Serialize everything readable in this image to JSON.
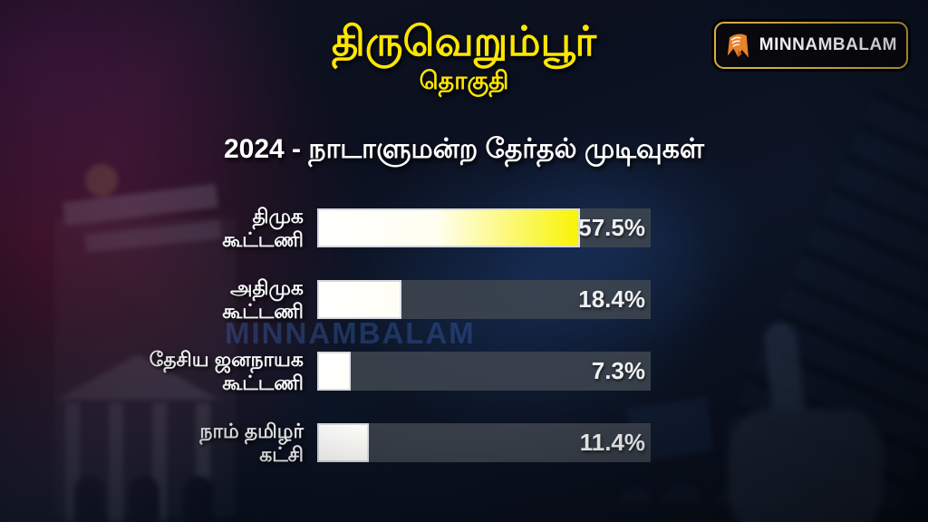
{
  "header": {
    "title": "திருவெறும்பூர்",
    "subtitle": "தொகுதி"
  },
  "brand": {
    "logo_text": "MINNAMBALAM",
    "logo_icon": "minnambalam-m-flame-icon",
    "logo_icon_color": "#e8832a",
    "logo_border_color": "#d4b03c",
    "watermark_text": "MINNAMBALAM"
  },
  "chart_data": {
    "type": "bar",
    "orientation": "horizontal",
    "title": "2024 - நாடாளுமன்ற தேர்தல் முடிவுகள்",
    "categories": [
      "திமுக கூட்டணி",
      "அதிமுக கூட்டணி",
      "தேசிய ஜனநாயக கூட்டணி",
      "நாம் தமிழர் கட்சி"
    ],
    "categories_lines": [
      [
        "திமுக",
        "கூட்டணி"
      ],
      [
        "அதிமுக",
        "கூட்டணி"
      ],
      [
        "தேசிய ஜனநாயக",
        "கூட்டணி"
      ],
      [
        "நாம் தமிழர்",
        "கட்சி"
      ]
    ],
    "values": [
      57.5,
      18.4,
      7.3,
      11.4
    ],
    "value_labels": [
      "57.5%",
      "18.4%",
      "7.3%",
      "11.4%"
    ],
    "unit": "%",
    "xlim": [
      0,
      73
    ],
    "grid": false,
    "legend": false,
    "colors": {
      "title_text": "#ffffff",
      "category_text": "#f5f6f8",
      "value_text": "#eef0f2",
      "bar_track": "#40464f",
      "bar_fill_start": "#ffffff",
      "bar_fill_mid": "#fffef0",
      "bar_fill_end": "#f8f300",
      "bar_border": "#dee2e6"
    }
  },
  "theme": {
    "background": "#0b101f",
    "accent_yellow": "#ffe600"
  }
}
